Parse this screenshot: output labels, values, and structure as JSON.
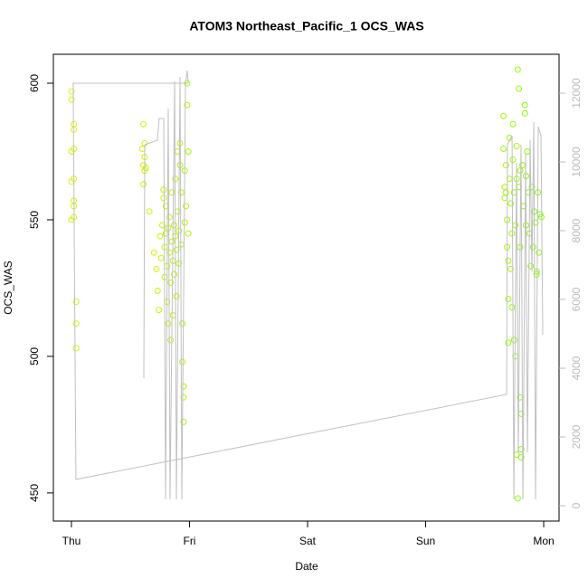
{
  "chart_data": {
    "type": "scatter",
    "title": "ATOM3 Northeast_Pacific_1 OCS_WAS",
    "xlabel": "Date",
    "ylabel": "OCS_WAS",
    "xlim": [
      -0.153,
      4.13
    ],
    "xticks": [
      {
        "value": 0,
        "label": "Thu"
      },
      {
        "value": 1,
        "label": "Fri"
      },
      {
        "value": 2,
        "label": "Sat"
      },
      {
        "value": 3,
        "label": "Sun"
      },
      {
        "value": 4,
        "label": "Mon"
      }
    ],
    "ylim": [
      439.7,
      610.6
    ],
    "yticks": [
      450,
      500,
      550,
      600
    ],
    "y2lim": [
      -447,
      13132
    ],
    "y2ticks": [
      0,
      2000,
      4000,
      6000,
      8000,
      10000,
      12000
    ],
    "series": [
      {
        "type": "scatter",
        "colors": [
          "#e0f000",
          "#7fff00"
        ],
        "x": [
          0.0,
          0.0,
          0.02,
          0.02,
          0.02,
          0.0,
          0.02,
          0.0,
          0.02,
          0.02,
          0.02,
          0.0,
          0.04,
          0.04,
          0.04,
          0.61,
          0.62,
          0.6,
          0.62,
          0.61,
          0.63,
          0.62,
          0.61,
          0.66,
          0.7,
          0.72,
          0.73,
          0.74,
          0.75,
          0.76,
          0.77,
          0.78,
          0.78,
          0.79,
          0.79,
          0.8,
          0.8,
          0.81,
          0.81,
          0.82,
          0.82,
          0.83,
          0.83,
          0.84,
          0.84,
          0.85,
          0.85,
          0.86,
          0.86,
          0.87,
          0.87,
          0.88,
          0.88,
          0.89,
          0.89,
          0.9,
          0.9,
          0.91,
          0.91,
          0.92,
          0.92,
          0.93,
          0.93,
          0.94,
          0.94,
          0.95,
          0.95,
          0.95,
          0.96,
          0.96,
          0.97,
          0.98,
          0.98,
          0.99,
          0.99,
          3.66,
          3.66,
          3.67,
          3.67,
          3.68,
          3.68,
          3.69,
          3.69,
          3.7,
          3.7,
          3.7,
          3.71,
          3.71,
          3.72,
          3.72,
          3.73,
          3.73,
          3.74,
          3.74,
          3.75,
          3.75,
          3.76,
          3.76,
          3.77,
          3.77,
          3.77,
          3.78,
          3.78,
          3.79,
          3.79,
          3.8,
          3.8,
          3.8,
          3.81,
          3.81,
          3.81,
          3.82,
          3.83,
          3.84,
          3.84,
          3.85,
          3.85,
          3.86,
          3.87,
          3.88,
          3.89,
          3.9,
          3.91,
          3.92,
          3.93,
          3.94,
          3.94,
          3.95,
          3.96,
          3.97,
          3.98
        ],
        "values": [
          597,
          594,
          585,
          583,
          576,
          575,
          565,
          564,
          557,
          555,
          551,
          550,
          520,
          512,
          503,
          585,
          578,
          576,
          573,
          570,
          569,
          568,
          563,
          553,
          538,
          532,
          524,
          517,
          544,
          536,
          548,
          558,
          561,
          540,
          529,
          545,
          555,
          533,
          520,
          547,
          512,
          538,
          551,
          527,
          506,
          542,
          560,
          535,
          515,
          548,
          530,
          544,
          565,
          522,
          539,
          553,
          575,
          546,
          534,
          578,
          570,
          541,
          560,
          512,
          498,
          489,
          485,
          476,
          568,
          549,
          555,
          600,
          592,
          545,
          575,
          588,
          576,
          562,
          558,
          570,
          560,
          550,
          540,
          535,
          521,
          505,
          580,
          565,
          556,
          532,
          545,
          518,
          585,
          572,
          560,
          506,
          548,
          500,
          577,
          565,
          464,
          605,
          448,
          598,
          562,
          568,
          540,
          485,
          479,
          466,
          463,
          570,
          555,
          592,
          589,
          566,
          548,
          575,
          560,
          545,
          533,
          562,
          540,
          553,
          549,
          530,
          531,
          560,
          538,
          552,
          551
        ]
      },
      {
        "type": "line",
        "axis": "y2",
        "color": "#c0c0c0",
        "x": [
          0.613,
          0.621,
          0.728,
          0.743,
          0.782,
          0.797,
          0.82,
          0.835,
          0.874,
          0.889,
          0.92,
          0.935,
          0.966,
          0.981,
          0.989,
          0.015,
          0.038,
          3.686,
          3.693,
          3.732,
          3.747,
          3.77,
          3.785,
          3.808,
          3.824,
          3.847,
          3.862,
          3.885,
          3.9,
          3.916,
          3.931,
          3.954,
          3.977,
          3.992
        ],
        "values": [
          3711,
          10500,
          10632,
          11263,
          11263,
          184,
          11553,
          184,
          12342,
          184,
          12474,
          184,
          12289,
          12658,
          12289,
          12289,
          763,
          3237,
          10500,
          10763,
          184,
          9974,
          1553,
          10500,
          184,
          10237,
          1553,
          10632,
          6816,
          11158,
          184,
          11026,
          10763,
          4974
        ]
      }
    ]
  }
}
